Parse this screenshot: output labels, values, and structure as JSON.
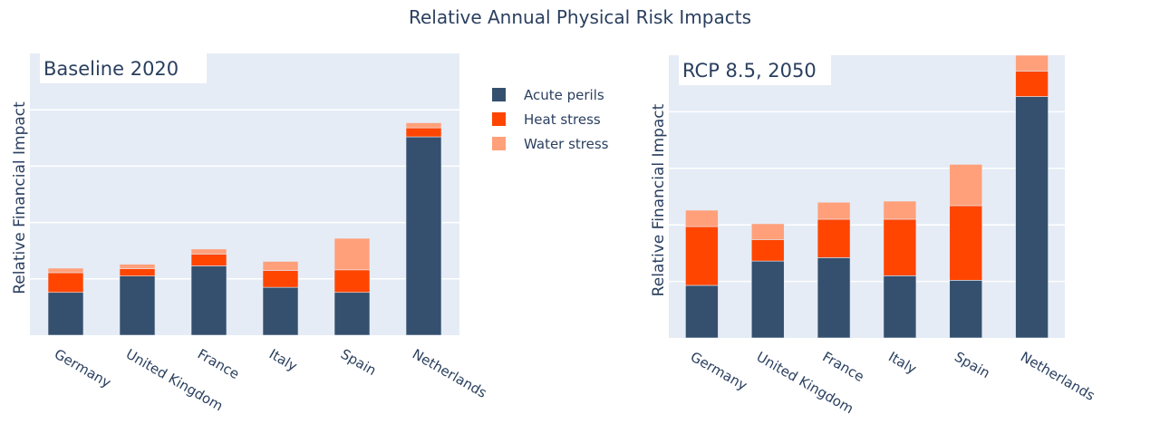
{
  "title": "Relative Annual Physical Risk Impacts",
  "colors": {
    "Acute perils": "#34506e",
    "Heat stress": "#ff4500",
    "Water stress": "#ffa07a",
    "plot_bg": "#e5ecf6"
  },
  "legend": {
    "placement": "center, between panels",
    "items": [
      "Acute perils",
      "Heat stress",
      "Water stress"
    ]
  },
  "chart_data": [
    {
      "type": "bar",
      "stacked": true,
      "title": "Baseline 2020",
      "ylabel": "Relative Financial Impact",
      "xlabel": "",
      "y_tick_labels_shown": false,
      "grid": true,
      "ylim": [
        0,
        5
      ],
      "categories": [
        "Germany",
        "United Kingdom",
        "France",
        "Italy",
        "Spain",
        "Netherlands"
      ],
      "series": [
        {
          "name": "Acute perils",
          "values": [
            0.76,
            1.05,
            1.23,
            0.85,
            0.76,
            3.52
          ]
        },
        {
          "name": "Heat stress",
          "values": [
            0.35,
            0.13,
            0.21,
            0.3,
            0.4,
            0.16
          ]
        },
        {
          "name": "Water stress",
          "values": [
            0.08,
            0.08,
            0.09,
            0.16,
            0.56,
            0.09
          ]
        }
      ]
    },
    {
      "type": "bar",
      "stacked": true,
      "title": "RCP 8.5, 2050",
      "ylabel": "Relative Financial Impact",
      "xlabel": "",
      "y_tick_labels_shown": false,
      "grid": true,
      "ylim": [
        0,
        5
      ],
      "categories": [
        "Germany",
        "United Kingdom",
        "France",
        "Italy",
        "Spain",
        "Netherlands"
      ],
      "series": [
        {
          "name": "Acute perils",
          "values": [
            0.93,
            1.36,
            1.42,
            1.1,
            1.02,
            4.27
          ]
        },
        {
          "name": "Heat stress",
          "values": [
            1.04,
            0.38,
            0.68,
            1.0,
            1.32,
            0.45
          ]
        },
        {
          "name": "Water stress",
          "values": [
            0.29,
            0.28,
            0.3,
            0.32,
            0.73,
            0.28
          ]
        }
      ]
    }
  ]
}
